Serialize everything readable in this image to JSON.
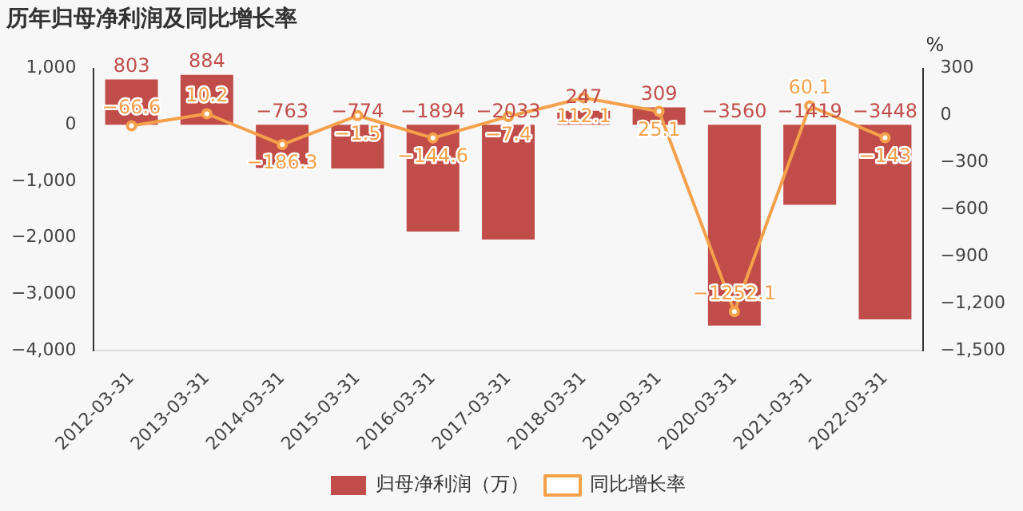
{
  "chart_data": {
    "type": "bar",
    "title": "历年归母净利润及同比增长率",
    "y2label": "%",
    "categories": [
      "2012-03-31",
      "2013-03-31",
      "2014-03-31",
      "2015-03-31",
      "2016-03-31",
      "2017-03-31",
      "2018-03-31",
      "2019-03-31",
      "2020-03-31",
      "2021-03-31",
      "2022-03-31"
    ],
    "series": [
      {
        "name": "归母净利润（万）",
        "color": "#c14d4a",
        "values": [
          803,
          884,
          -763,
          -774,
          -1894,
          -2033,
          247,
          309,
          -3560,
          -1419,
          -3448
        ]
      },
      {
        "name": "同比增长率",
        "type": "line",
        "axis": "y2",
        "color": "#f5a04a",
        "marker": "circle",
        "values": [
          -66.6,
          10.2,
          -186.3,
          -1.5,
          -144.6,
          -7.4,
          112.1,
          25.1,
          -1252.1,
          60.1,
          -143.0
        ]
      }
    ],
    "ylim": [
      -4000,
      1000
    ],
    "yticks": [
      {
        "value": -4000,
        "label": "−4,000"
      },
      {
        "value": -3000,
        "label": "−3,000"
      },
      {
        "value": -2000,
        "label": "−2,000"
      },
      {
        "value": -1000,
        "label": "−1,000"
      },
      0,
      {
        "value": 1000,
        "label": "1,000"
      }
    ],
    "y2lim": [
      -1500,
      300
    ],
    "y2ticks": [
      {
        "value": -1500,
        "label": "−1,500"
      },
      {
        "value": -1200,
        "label": "−1,200"
      },
      {
        "value": -900,
        "label": "−900"
      },
      {
        "value": -600,
        "label": "−600"
      },
      {
        "value": -300,
        "label": "−300"
      },
      0,
      300
    ],
    "data_labels": true,
    "grid": false,
    "legend": "bottom"
  }
}
